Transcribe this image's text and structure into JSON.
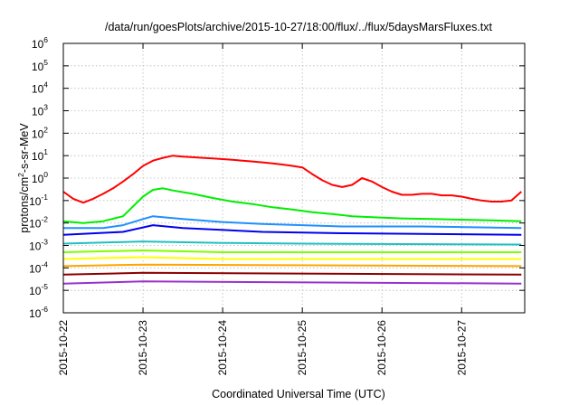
{
  "chart_data": {
    "type": "line",
    "title": "/data/run/goesPlots/archive/2015-10-27/18:00/flux/../flux/5daysMarsFluxes.txt",
    "xlabel": "Coordinated Universal Time (UTC)",
    "ylabel": {
      "prefix": "protons/cm",
      "superscript": "2",
      "suffix": "-s-sr-MeV"
    },
    "y_scale": "log",
    "ylim": [
      1e-06,
      1000000.0
    ],
    "y_ticks": [
      {
        "value": 1e-06,
        "base": "10",
        "exp": "-6"
      },
      {
        "value": 1e-05,
        "base": "10",
        "exp": "-5"
      },
      {
        "value": 0.0001,
        "base": "10",
        "exp": "-4"
      },
      {
        "value": 0.001,
        "base": "10",
        "exp": "-3"
      },
      {
        "value": 0.01,
        "base": "10",
        "exp": "-2"
      },
      {
        "value": 0.1,
        "base": "10",
        "exp": "-1"
      },
      {
        "value": 1.0,
        "base": "10",
        "exp": "0"
      },
      {
        "value": 10.0,
        "base": "10",
        "exp": "1"
      },
      {
        "value": 100.0,
        "base": "10",
        "exp": "2"
      },
      {
        "value": 1000.0,
        "base": "10",
        "exp": "3"
      },
      {
        "value": 10000.0,
        "base": "10",
        "exp": "4"
      },
      {
        "value": 100000.0,
        "base": "10",
        "exp": "5"
      },
      {
        "value": 1000000.0,
        "base": "10",
        "exp": "6"
      }
    ],
    "x_type": "date",
    "xlim": [
      "2015-10-22T00:00",
      "2015-10-27T19:00"
    ],
    "x_ticks": [
      "2015-10-22",
      "2015-10-23",
      "2015-10-24",
      "2015-10-25",
      "2015-10-26",
      "2015-10-27"
    ],
    "grid": true,
    "legend": "none",
    "series": [
      {
        "color": "#ff0000",
        "points": [
          [
            "2015-10-22T00:00",
            0.25
          ],
          [
            "2015-10-22T03:00",
            0.12
          ],
          [
            "2015-10-22T06:00",
            0.08
          ],
          [
            "2015-10-22T09:00",
            0.12
          ],
          [
            "2015-10-22T12:00",
            0.2
          ],
          [
            "2015-10-22T15:00",
            0.35
          ],
          [
            "2015-10-22T18:00",
            0.7
          ],
          [
            "2015-10-22T21:00",
            1.5
          ],
          [
            "2015-10-23T00:00",
            3.5
          ],
          [
            "2015-10-23T03:00",
            6
          ],
          [
            "2015-10-23T06:00",
            8
          ],
          [
            "2015-10-23T09:00",
            10
          ],
          [
            "2015-10-23T12:00",
            9
          ],
          [
            "2015-10-23T15:00",
            8.5
          ],
          [
            "2015-10-23T18:00",
            8
          ],
          [
            "2015-10-23T21:00",
            7.5
          ],
          [
            "2015-10-24T00:00",
            7
          ],
          [
            "2015-10-24T03:00",
            6.5
          ],
          [
            "2015-10-24T06:00",
            6
          ],
          [
            "2015-10-24T09:00",
            5.5
          ],
          [
            "2015-10-24T12:00",
            5
          ],
          [
            "2015-10-24T15:00",
            4.5
          ],
          [
            "2015-10-24T18:00",
            4
          ],
          [
            "2015-10-24T21:00",
            3.5
          ],
          [
            "2015-10-25T00:00",
            3
          ],
          [
            "2015-10-25T03:00",
            1.5
          ],
          [
            "2015-10-25T06:00",
            0.8
          ],
          [
            "2015-10-25T09:00",
            0.5
          ],
          [
            "2015-10-25T12:00",
            0.4
          ],
          [
            "2015-10-25T15:00",
            0.5
          ],
          [
            "2015-10-25T18:00",
            1
          ],
          [
            "2015-10-25T21:00",
            0.7
          ],
          [
            "2015-10-26T00:00",
            0.4
          ],
          [
            "2015-10-26T03:00",
            0.25
          ],
          [
            "2015-10-26T06:00",
            0.18
          ],
          [
            "2015-10-26T09:00",
            0.18
          ],
          [
            "2015-10-26T12:00",
            0.2
          ],
          [
            "2015-10-26T15:00",
            0.2
          ],
          [
            "2015-10-26T18:00",
            0.17
          ],
          [
            "2015-10-26T21:00",
            0.17
          ],
          [
            "2015-10-27T00:00",
            0.15
          ],
          [
            "2015-10-27T03:00",
            0.12
          ],
          [
            "2015-10-27T06:00",
            0.1
          ],
          [
            "2015-10-27T09:00",
            0.09
          ],
          [
            "2015-10-27T12:00",
            0.09
          ],
          [
            "2015-10-27T15:00",
            0.1
          ],
          [
            "2015-10-27T18:00",
            0.25
          ]
        ]
      },
      {
        "color": "#00ee00",
        "points": [
          [
            "2015-10-22T00:00",
            0.012
          ],
          [
            "2015-10-22T06:00",
            0.01
          ],
          [
            "2015-10-22T12:00",
            0.012
          ],
          [
            "2015-10-22T18:00",
            0.02
          ],
          [
            "2015-10-23T00:00",
            0.15
          ],
          [
            "2015-10-23T03:00",
            0.3
          ],
          [
            "2015-10-23T06:00",
            0.35
          ],
          [
            "2015-10-23T09:00",
            0.28
          ],
          [
            "2015-10-23T15:00",
            0.2
          ],
          [
            "2015-10-23T21:00",
            0.13
          ],
          [
            "2015-10-24T03:00",
            0.09
          ],
          [
            "2015-10-24T09:00",
            0.07
          ],
          [
            "2015-10-24T15:00",
            0.05
          ],
          [
            "2015-10-24T21:00",
            0.04
          ],
          [
            "2015-10-25T03:00",
            0.03
          ],
          [
            "2015-10-25T09:00",
            0.025
          ],
          [
            "2015-10-25T15:00",
            0.02
          ],
          [
            "2015-10-25T21:00",
            0.018
          ],
          [
            "2015-10-26T06:00",
            0.016
          ],
          [
            "2015-10-26T15:00",
            0.015
          ],
          [
            "2015-10-27T00:00",
            0.014
          ],
          [
            "2015-10-27T09:00",
            0.013
          ],
          [
            "2015-10-27T18:00",
            0.012
          ]
        ]
      },
      {
        "color": "#1e90ff",
        "points": [
          [
            "2015-10-22T00:00",
            0.006
          ],
          [
            "2015-10-22T12:00",
            0.006
          ],
          [
            "2015-10-22T18:00",
            0.008
          ],
          [
            "2015-10-23T00:00",
            0.015
          ],
          [
            "2015-10-23T03:00",
            0.02
          ],
          [
            "2015-10-23T12:00",
            0.015
          ],
          [
            "2015-10-24T00:00",
            0.011
          ],
          [
            "2015-10-24T12:00",
            0.009
          ],
          [
            "2015-10-25T00:00",
            0.008
          ],
          [
            "2015-10-25T12:00",
            0.007
          ],
          [
            "2015-10-26T12:00",
            0.007
          ],
          [
            "2015-10-27T18:00",
            0.006
          ]
        ]
      },
      {
        "color": "#0000ee",
        "points": [
          [
            "2015-10-22T00:00",
            0.003
          ],
          [
            "2015-10-22T18:00",
            0.004
          ],
          [
            "2015-10-23T03:00",
            0.008
          ],
          [
            "2015-10-23T12:00",
            0.006
          ],
          [
            "2015-10-24T12:00",
            0.004
          ],
          [
            "2015-10-25T12:00",
            0.0035
          ],
          [
            "2015-10-27T18:00",
            0.003
          ]
        ]
      },
      {
        "color": "#20c0c0",
        "points": [
          [
            "2015-10-22T00:00",
            0.0012
          ],
          [
            "2015-10-23T00:00",
            0.0015
          ],
          [
            "2015-10-24T00:00",
            0.0013
          ],
          [
            "2015-10-25T00:00",
            0.0012
          ],
          [
            "2015-10-27T18:00",
            0.0011
          ]
        ]
      },
      {
        "color": "#7fff00",
        "points": [
          [
            "2015-10-22T00:00",
            0.0005
          ],
          [
            "2015-10-23T00:00",
            0.0006
          ],
          [
            "2015-10-24T00:00",
            0.0005
          ],
          [
            "2015-10-27T18:00",
            0.0005
          ]
        ]
      },
      {
        "color": "#ffff00",
        "points": [
          [
            "2015-10-22T00:00",
            0.00025
          ],
          [
            "2015-10-23T00:00",
            0.0003
          ],
          [
            "2015-10-24T00:00",
            0.00025
          ],
          [
            "2015-10-27T18:00",
            0.00025
          ]
        ]
      },
      {
        "color": "#ffa500",
        "points": [
          [
            "2015-10-22T00:00",
            0.00012
          ],
          [
            "2015-10-23T00:00",
            0.00014
          ],
          [
            "2015-10-27T18:00",
            0.00012
          ]
        ]
      },
      {
        "color": "#8b0000",
        "points": [
          [
            "2015-10-22T00:00",
            5e-05
          ],
          [
            "2015-10-23T00:00",
            6e-05
          ],
          [
            "2015-10-27T18:00",
            5e-05
          ]
        ]
      },
      {
        "color": "#9932cc",
        "points": [
          [
            "2015-10-22T00:00",
            2e-05
          ],
          [
            "2015-10-23T00:00",
            2.5e-05
          ],
          [
            "2015-10-27T18:00",
            2e-05
          ]
        ]
      }
    ]
  }
}
